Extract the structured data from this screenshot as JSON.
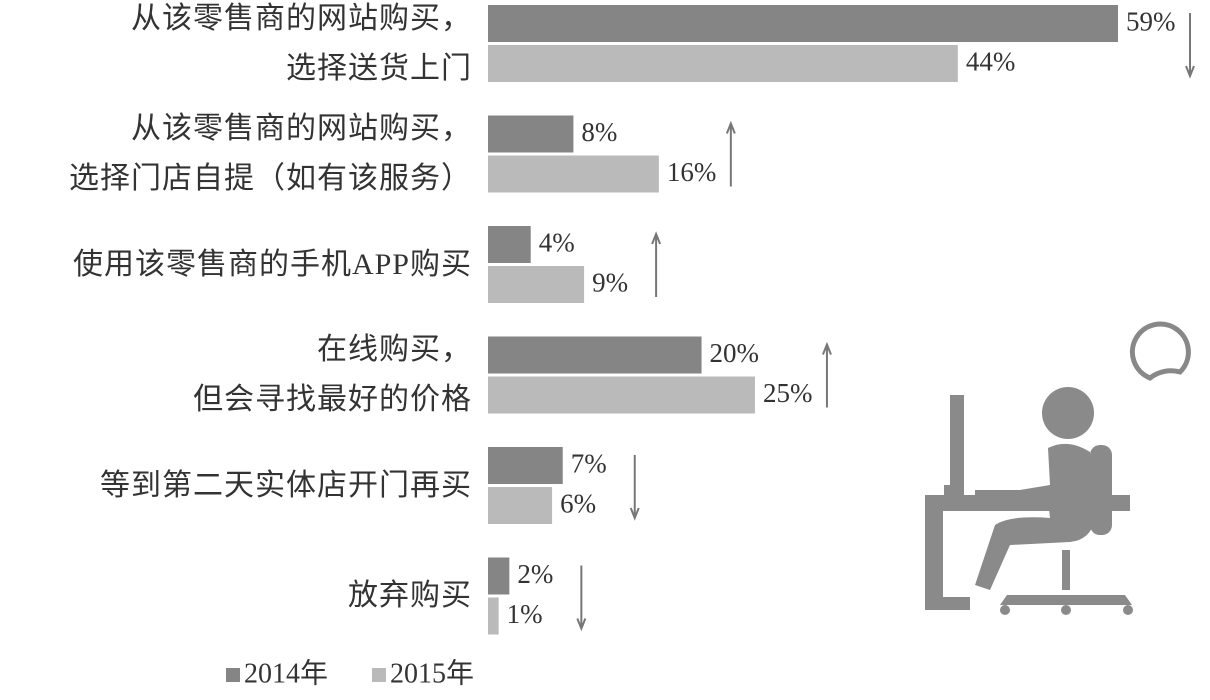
{
  "chart_data": {
    "type": "bar",
    "orientation": "horizontal",
    "categories": [
      "从该零售商的网站购买，\n选择送货上门",
      "从该零售商的网站购买，\n选择门店自提（如有该服务）",
      "使用该零售商的手机APP购买",
      "在线购买，\n但会寻找最好的价格",
      "等到第二天实体店开门再买",
      "放弃购买"
    ],
    "series": [
      {
        "name": "2014年",
        "color": "#858585",
        "values": [
          59,
          8,
          4,
          20,
          7,
          2
        ],
        "value_labels": [
          "59%",
          "8%",
          "4%",
          "20%",
          "7%",
          "2%"
        ]
      },
      {
        "name": "2015年",
        "color": "#bababa",
        "values": [
          44,
          16,
          9,
          25,
          6,
          1
        ],
        "value_labels": [
          "44%",
          "16%",
          "9%",
          "25%",
          "6%",
          "1%"
        ]
      }
    ],
    "xlim": [
      0,
      59
    ],
    "legend": "bottom"
  }
}
